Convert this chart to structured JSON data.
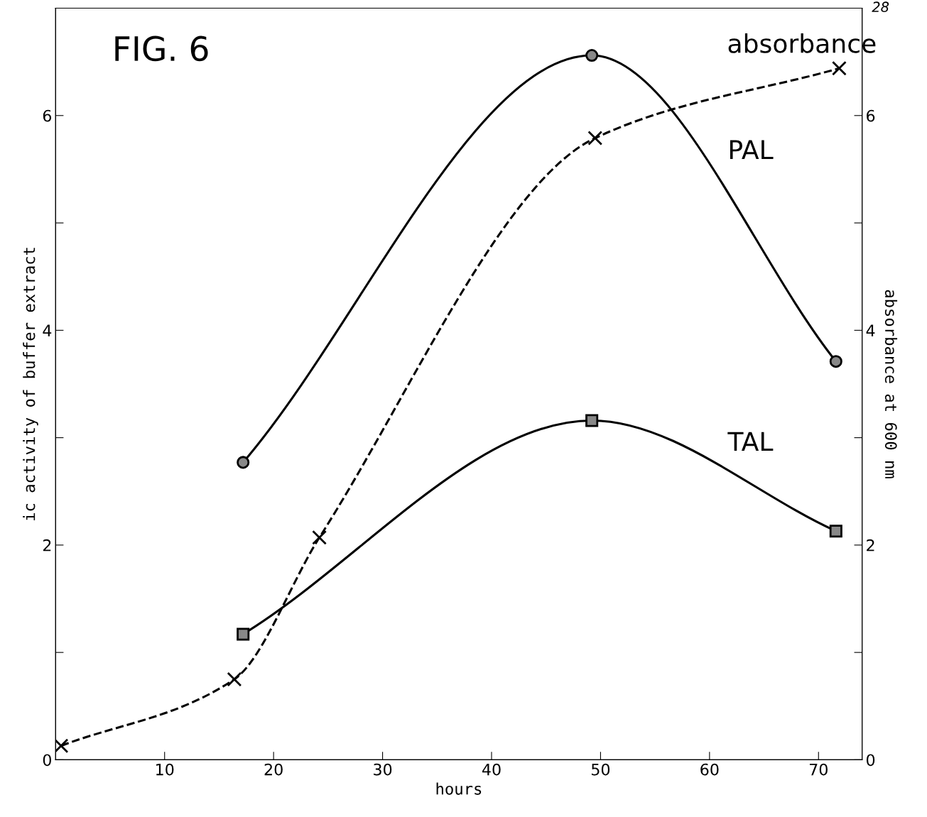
{
  "chart_data": {
    "type": "line",
    "xlabel": "hours",
    "ylabel": "ic activity of buffer extract",
    "y2label": "absorbance at 600 nm",
    "annotations": [
      "FIG. 6",
      "28"
    ],
    "xlim": [
      0,
      74
    ],
    "xticks": [
      10,
      20,
      30,
      40,
      50,
      60,
      70
    ],
    "ylim": [
      0,
      7
    ],
    "yticks": [
      0,
      {
        "value": 1,
        "label": null
      },
      2,
      {
        "value": 3,
        "label": null
      },
      4,
      {
        "value": 5,
        "label": null
      },
      6
    ],
    "y2lim": [
      0,
      7
    ],
    "y2ticks": [
      0,
      {
        "value": 1,
        "label": null
      },
      2,
      {
        "value": 3,
        "label": null
      },
      4,
      {
        "value": 5,
        "label": null
      },
      6
    ],
    "grid": false,
    "legend": false,
    "series": [
      {
        "name": "absorbance",
        "color": "#000000",
        "marker": "cross",
        "line_style": "dashed",
        "axis": "y2",
        "x": [
          0.5,
          16.4,
          24.2,
          49.5,
          71.9
        ],
        "values": [
          0.13,
          0.75,
          2.07,
          5.79,
          6.44
        ]
      },
      {
        "name": "PAL",
        "color": "#000000",
        "marker": "circle",
        "line_style": "solid",
        "x": [
          17.2,
          49.2,
          71.6
        ],
        "values": [
          2.77,
          6.56,
          3.71
        ]
      },
      {
        "name": "TAL",
        "color": "#000000",
        "marker": "square",
        "line_style": "solid",
        "x": [
          17.2,
          49.2,
          71.6
        ],
        "values": [
          1.17,
          3.16,
          2.13
        ]
      }
    ]
  }
}
